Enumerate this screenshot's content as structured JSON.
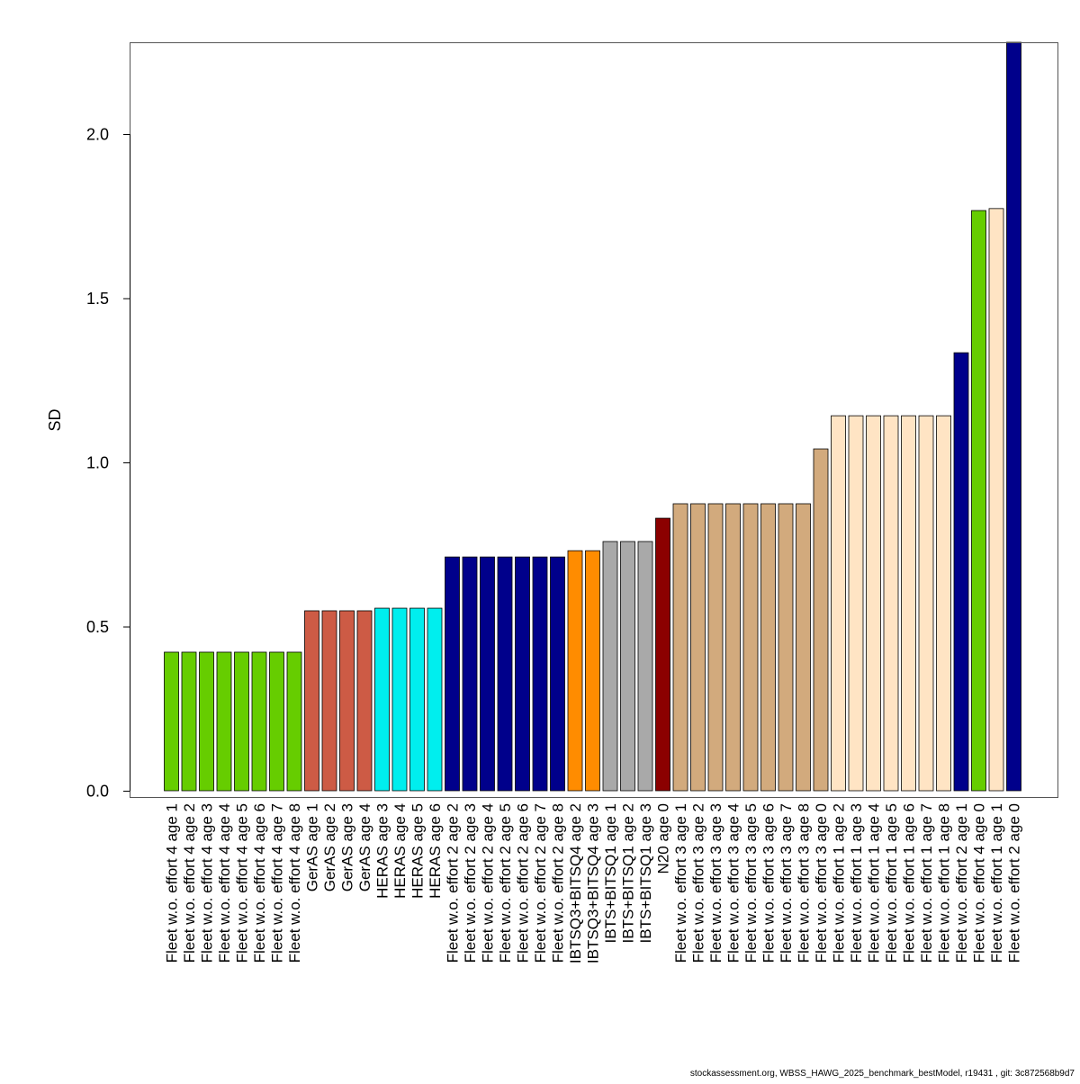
{
  "chart_data": {
    "type": "bar",
    "ylabel": "SD",
    "xlabel": "",
    "ylim": [
      0,
      2.28
    ],
    "yticks": [
      "0.0",
      "0.5",
      "1.0",
      "1.5",
      "2.0"
    ],
    "grid": false,
    "categories": [
      "Fleet w.o. effort 4 age 1",
      "Fleet w.o. effort 4 age 2",
      "Fleet w.o. effort 4 age 3",
      "Fleet w.o. effort 4 age 4",
      "Fleet w.o. effort 4 age 5",
      "Fleet w.o. effort 4 age 6",
      "Fleet w.o. effort 4 age 7",
      "Fleet w.o. effort 4 age 8",
      "GerAS age 1",
      "GerAS age 2",
      "GerAS age 3",
      "GerAS age 4",
      "HERAS age 3",
      "HERAS age 4",
      "HERAS age 5",
      "HERAS age 6",
      "Fleet w.o. effort 2 age 2",
      "Fleet w.o. effort 2 age 3",
      "Fleet w.o. effort 2 age 4",
      "Fleet w.o. effort 2 age 5",
      "Fleet w.o. effort 2 age 6",
      "Fleet w.o. effort 2 age 7",
      "Fleet w.o. effort 2 age 8",
      "IBTSQ3+BITSQ4 age 2",
      "IBTSQ3+BITSQ4 age 3",
      "IBTS+BITSQ1 age 1",
      "IBTS+BITSQ1 age 2",
      "IBTS+BITSQ1 age 3",
      "N20 age 0",
      "Fleet w.o. effort 3 age 1",
      "Fleet w.o. effort 3 age 2",
      "Fleet w.o. effort 3 age 3",
      "Fleet w.o. effort 3 age 4",
      "Fleet w.o. effort 3 age 5",
      "Fleet w.o. effort 3 age 6",
      "Fleet w.o. effort 3 age 7",
      "Fleet w.o. effort 3 age 8",
      "Fleet w.o. effort 3 age 0",
      "Fleet w.o. effort 1 age 2",
      "Fleet w.o. effort 1 age 3",
      "Fleet w.o. effort 1 age 4",
      "Fleet w.o. effort 1 age 5",
      "Fleet w.o. effort 1 age 6",
      "Fleet w.o. effort 1 age 7",
      "Fleet w.o. effort 1 age 8",
      "Fleet w.o. effort 2 age 1",
      "Fleet w.o. effort 4 age 0",
      "Fleet w.o. effort 1 age 1",
      "Fleet w.o. effort 2 age 0"
    ],
    "values": [
      0.422,
      0.422,
      0.422,
      0.422,
      0.422,
      0.422,
      0.422,
      0.422,
      0.548,
      0.548,
      0.548,
      0.548,
      0.556,
      0.556,
      0.556,
      0.556,
      0.712,
      0.712,
      0.712,
      0.712,
      0.712,
      0.712,
      0.712,
      0.731,
      0.731,
      0.759,
      0.759,
      0.759,
      0.83,
      0.874,
      0.874,
      0.874,
      0.874,
      0.874,
      0.874,
      0.874,
      0.874,
      1.041,
      1.142,
      1.142,
      1.142,
      1.142,
      1.142,
      1.142,
      1.142,
      1.334,
      1.767,
      1.773,
      2.28
    ],
    "colors": [
      "#66CD00",
      "#66CD00",
      "#66CD00",
      "#66CD00",
      "#66CD00",
      "#66CD00",
      "#66CD00",
      "#66CD00",
      "#CD5B45",
      "#CD5B45",
      "#CD5B45",
      "#CD5B45",
      "#00EEEE",
      "#00EEEE",
      "#00EEEE",
      "#00EEEE",
      "#00008B",
      "#00008B",
      "#00008B",
      "#00008B",
      "#00008B",
      "#00008B",
      "#00008B",
      "#FF8C00",
      "#FF8C00",
      "#A9A9A9",
      "#A9A9A9",
      "#A9A9A9",
      "#8B0000",
      "#D2AA7D",
      "#D2AA7D",
      "#D2AA7D",
      "#D2AA7D",
      "#D2AA7D",
      "#D2AA7D",
      "#D2AA7D",
      "#D2AA7D",
      "#D2AA7D",
      "#FFE4C4",
      "#FFE4C4",
      "#FFE4C4",
      "#FFE4C4",
      "#FFE4C4",
      "#FFE4C4",
      "#FFE4C4",
      "#00008B",
      "#66CD00",
      "#FFE4C4",
      "#00008B"
    ]
  },
  "footer": "stockassessment.org, WBSS_HAWG_2025_benchmark_bestModel, r19431 , git: 3c872568b9d7"
}
